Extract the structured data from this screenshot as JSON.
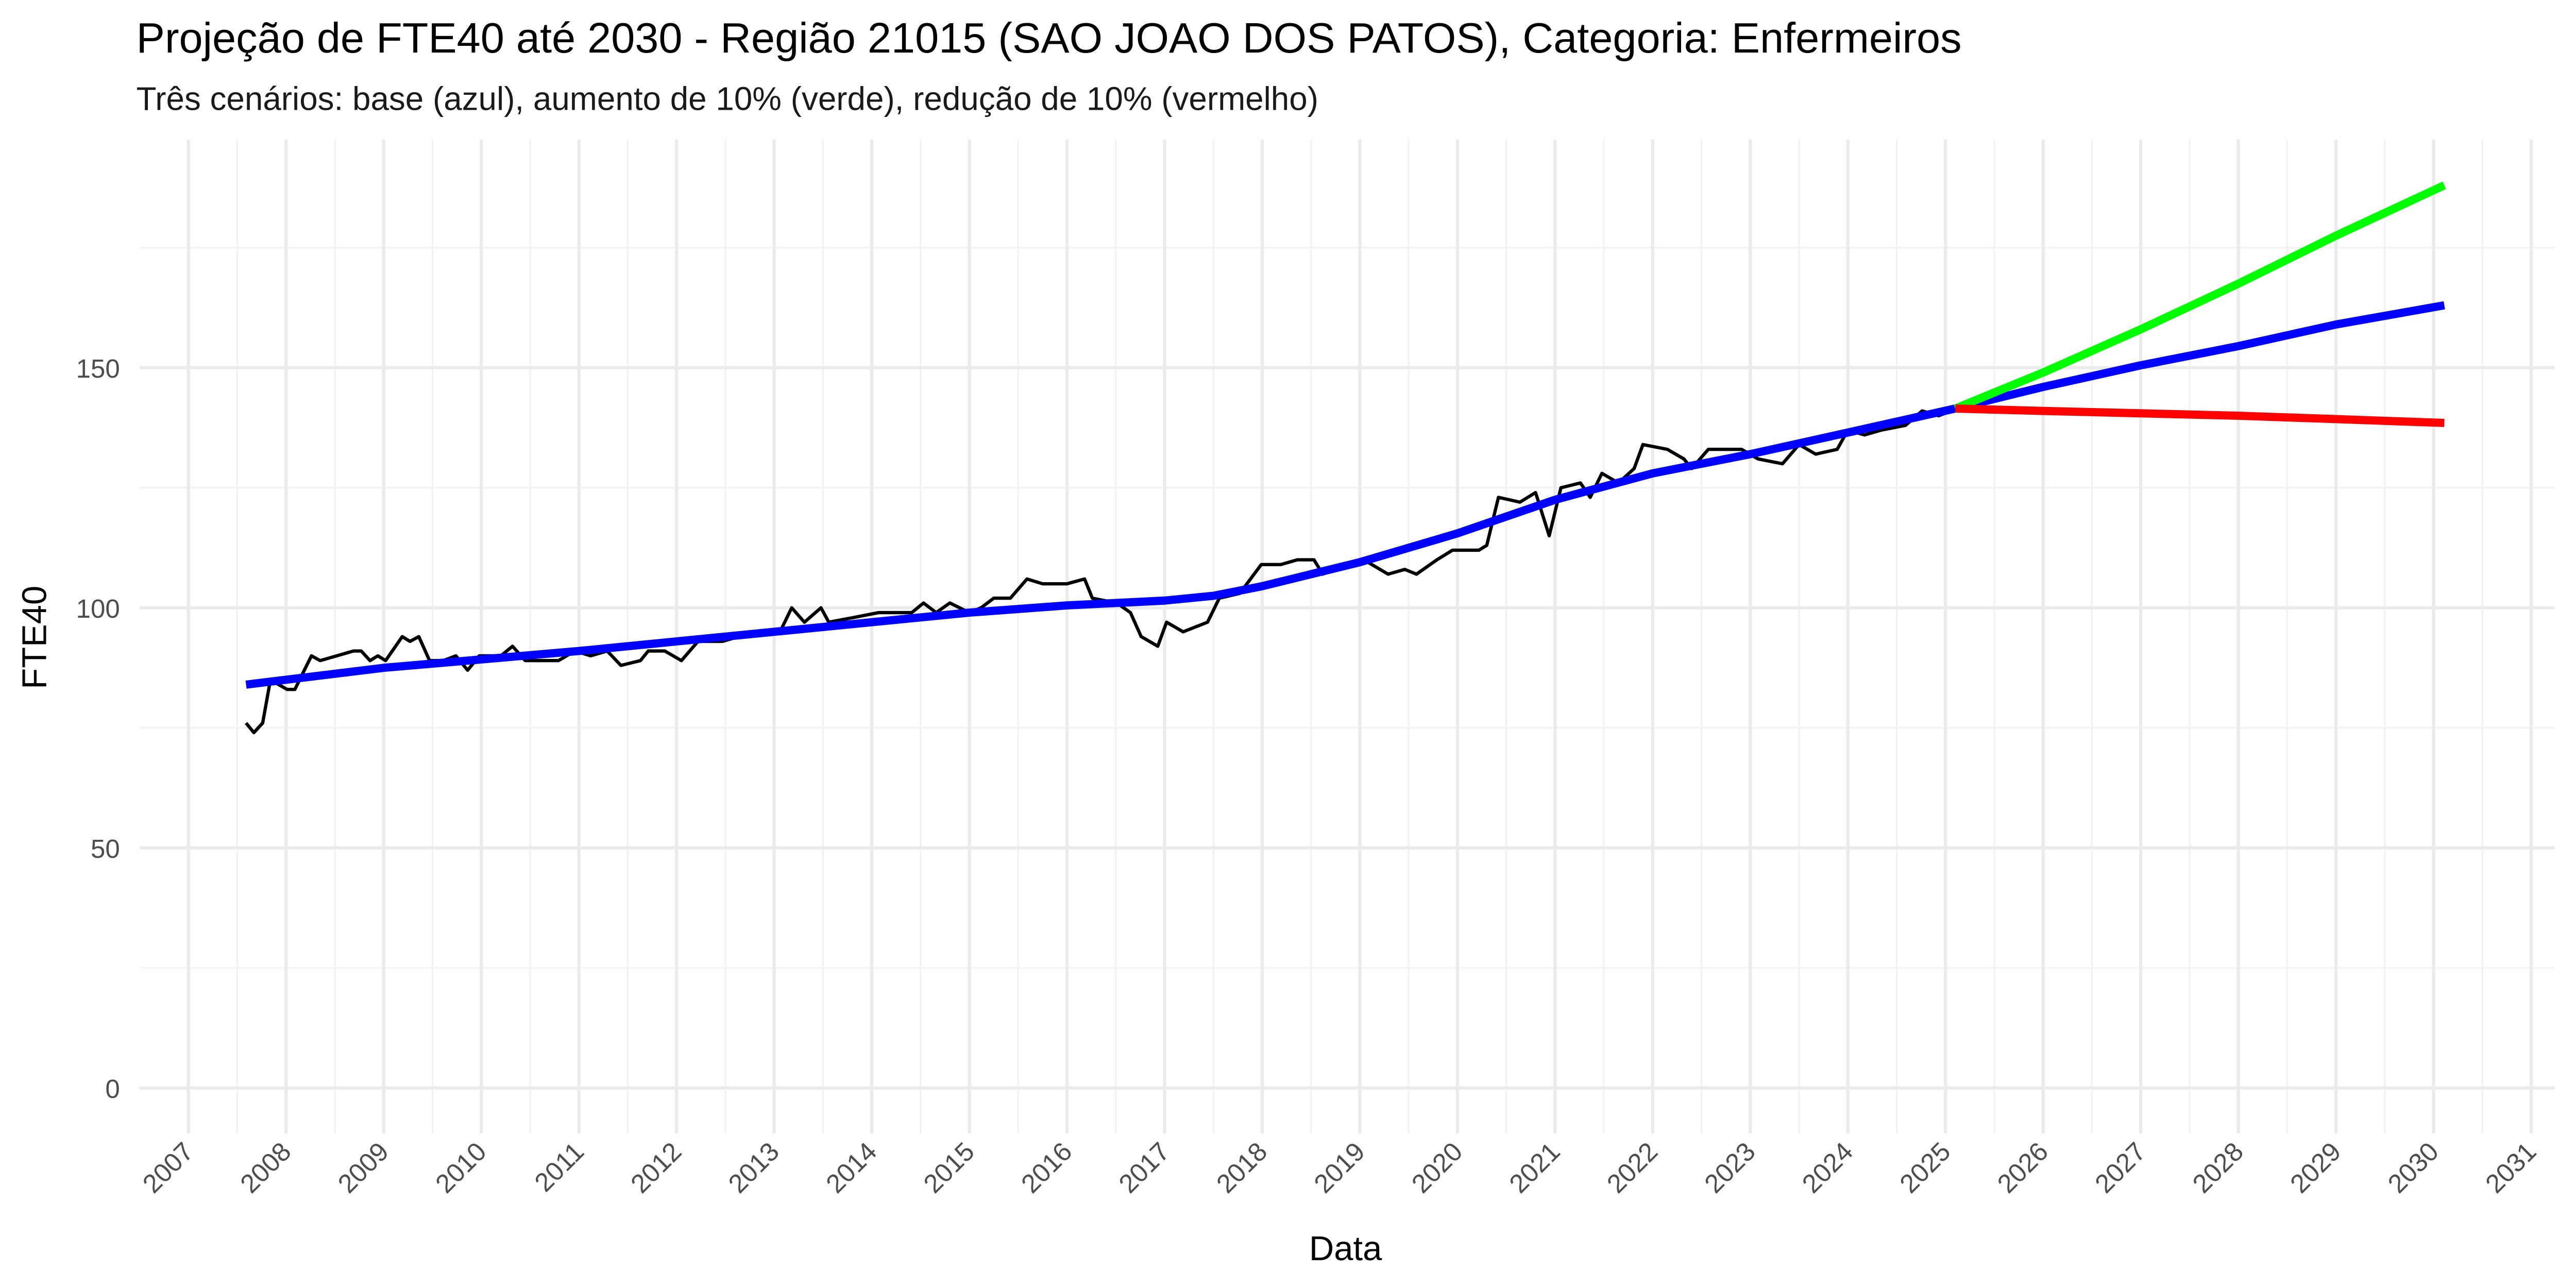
{
  "chart_data": {
    "type": "line",
    "title": "Projeção de FTE40 até 2030 - Região 21015 (SAO JOAO DOS PATOS), Categoria: Enfermeiros",
    "subtitle": "Três cenários: base (azul), aumento de 10% (verde), redução de 10% (vermelho)",
    "x_label": "Data",
    "y_label": "FTE40",
    "xlim": [
      2006.5,
      2031.24
    ],
    "ylim": [
      -9.5,
      197.5
    ],
    "xticks": [
      2007,
      2008,
      2009,
      2010,
      2011,
      2012,
      2013,
      2014,
      2015,
      2016,
      2017,
      2018,
      2019,
      2020,
      2021,
      2022,
      2023,
      2024,
      2025,
      2026,
      2027,
      2028,
      2029,
      2030,
      2031
    ],
    "yticks": [
      0,
      50,
      100,
      150
    ],
    "grid": true,
    "series": [
      {
        "color": "#000000",
        "x": [
          2007.59,
          2007.67,
          2007.76,
          2007.84,
          2008.01,
          2008.09,
          2008.26,
          2008.35,
          2008.52,
          2008.69,
          2008.77,
          2008.86,
          2008.94,
          2009.02,
          2009.19,
          2009.27,
          2009.36,
          2009.47,
          2009.61,
          2009.74,
          2009.86,
          2009.98,
          2010.2,
          2010.32,
          2010.45,
          2010.79,
          2010.96,
          2011.12,
          2011.29,
          2011.43,
          2011.63,
          2011.71,
          2011.88,
          2012.05,
          2012.22,
          2012.47,
          2012.81,
          2013.06,
          2013.18,
          2013.31,
          2013.48,
          2013.56,
          2013.82,
          2014.07,
          2014.41,
          2014.53,
          2014.66,
          2014.8,
          2015.0,
          2015.12,
          2015.25,
          2015.42,
          2015.59,
          2015.75,
          2016.0,
          2016.18,
          2016.26,
          2016.51,
          2016.65,
          2016.76,
          2016.93,
          2017.02,
          2017.19,
          2017.44,
          2017.56,
          2017.77,
          2017.99,
          2018.19,
          2018.36,
          2018.53,
          2018.62,
          2018.84,
          2019.04,
          2019.29,
          2019.46,
          2019.58,
          2019.79,
          2019.95,
          2020.22,
          2020.3,
          2020.42,
          2020.64,
          2020.8,
          2020.94,
          2021.06,
          2021.26,
          2021.36,
          2021.48,
          2021.65,
          2021.81,
          2021.9,
          2022.15,
          2022.32,
          2022.4,
          2022.57,
          2022.91,
          2023.08,
          2023.33,
          2023.5,
          2023.67,
          2023.89,
          2024.0,
          2024.17,
          2024.34,
          2024.59,
          2024.76,
          2024.93,
          2025.06
        ],
        "values": [
          76,
          74,
          76,
          85,
          83,
          83,
          90,
          89,
          90,
          91,
          91,
          89,
          90,
          89,
          94,
          93,
          94,
          89,
          89,
          90,
          87,
          90,
          90,
          92,
          89,
          89,
          91,
          90,
          91,
          88,
          89,
          91,
          91,
          89,
          93,
          93,
          95,
          95,
          100,
          97,
          100,
          97,
          98,
          99,
          99,
          101,
          99,
          101,
          99,
          100,
          102,
          102,
          106,
          105,
          105,
          106,
          102,
          101,
          99,
          94,
          92,
          97,
          95,
          97,
          102,
          103,
          109,
          109,
          110,
          110,
          107,
          109,
          110,
          107,
          108,
          107,
          110,
          112,
          112,
          113,
          123,
          122,
          124,
          115,
          125,
          126,
          123,
          128,
          126,
          129,
          134,
          133,
          131,
          129,
          133,
          133,
          131,
          130,
          134,
          132,
          133,
          137,
          136,
          137,
          138,
          141,
          140,
          141
        ]
      },
      {
        "color": "#0000ff",
        "x": [
          2007.59,
          2009,
          2011,
          2013,
          2015,
          2016,
          2017,
          2017.5,
          2018,
          2019,
          2020,
          2021,
          2022,
          2023,
          2024,
          2025.1,
          2026,
          2027,
          2028,
          2029,
          2030.11
        ],
        "values": [
          84,
          87.5,
          91,
          95,
          99,
          100.5,
          101.5,
          102.5,
          104.5,
          109.5,
          115.5,
          122.5,
          128,
          132,
          136.5,
          141.5,
          146,
          150.5,
          154.5,
          159,
          163
        ]
      },
      {
        "color": "#00ff00",
        "x": [
          2025.1,
          2026,
          2027,
          2028,
          2029,
          2030.11
        ],
        "values": [
          141.5,
          149,
          158,
          167.5,
          177.5,
          188
        ]
      },
      {
        "color": "#ff0000",
        "x": [
          2025.1,
          2026,
          2027,
          2028,
          2029,
          2030.11
        ],
        "values": [
          141.5,
          141,
          140.5,
          140,
          139.3,
          138.5
        ]
      }
    ]
  }
}
